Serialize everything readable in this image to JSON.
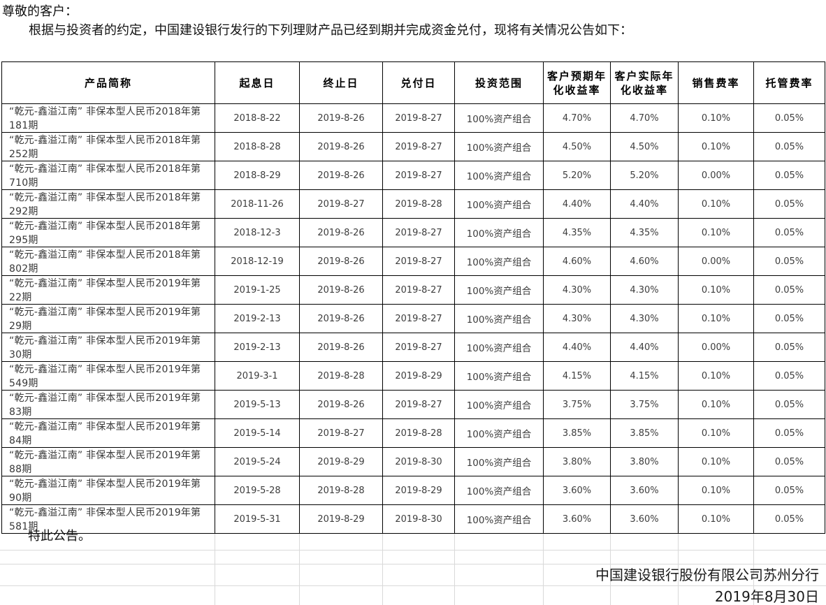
{
  "page": {
    "salutation": "尊敬的客户：",
    "intro": "根据与投资者的约定，中国建设银行发行的下列理财产品已经到期并完成资金兑付，现将有关情况公告如下：",
    "closing": "特此公告。",
    "signature": {
      "issuer": "中国建设银行股份有限公司苏州分行",
      "date": "2019年8月30日"
    }
  },
  "colors": {
    "table_border": "#000000",
    "faint_grid": "#d9d9d9",
    "text": "#111111",
    "cell_text": "#3d3d3d",
    "background": "#ffffff"
  },
  "table": {
    "headers": [
      "产品简称",
      "起息日",
      "终止日",
      "兑付日",
      "投资范围",
      "客户预期年化收益率",
      "客户实际年化收益率",
      "销售费率",
      "托管费率"
    ],
    "rows": [
      [
        "“乾元-鑫溢江南” 非保本型人民币2018年第181期",
        "2018-8-22",
        "2019-8-26",
        "2019-8-27",
        "100%资产组合",
        "4.70%",
        "4.70%",
        "0.10%",
        "0.05%"
      ],
      [
        "“乾元-鑫溢江南” 非保本型人民币2018年第252期",
        "2018-8-28",
        "2019-8-26",
        "2019-8-27",
        "100%资产组合",
        "4.50%",
        "4.50%",
        "0.10%",
        "0.05%"
      ],
      [
        "“乾元-鑫溢江南” 非保本型人民币2018年第710期",
        "2018-8-29",
        "2019-8-26",
        "2019-8-27",
        "100%资产组合",
        "5.20%",
        "5.20%",
        "0.00%",
        "0.05%"
      ],
      [
        "“乾元-鑫溢江南” 非保本型人民币2018年第292期",
        "2018-11-26",
        "2019-8-27",
        "2019-8-28",
        "100%资产组合",
        "4.40%",
        "4.40%",
        "0.10%",
        "0.05%"
      ],
      [
        "“乾元-鑫溢江南” 非保本型人民币2018年第295期",
        "2018-12-3",
        "2019-8-26",
        "2019-8-27",
        "100%资产组合",
        "4.35%",
        "4.35%",
        "0.10%",
        "0.05%"
      ],
      [
        "“乾元-鑫溢江南” 非保本型人民币2018年第802期",
        "2018-12-19",
        "2019-8-26",
        "2019-8-27",
        "100%资产组合",
        "4.60%",
        "4.60%",
        "0.00%",
        "0.05%"
      ],
      [
        "“乾元-鑫溢江南” 非保本型人民币2019年第22期",
        "2019-1-25",
        "2019-8-26",
        "2019-8-27",
        "100%资产组合",
        "4.30%",
        "4.30%",
        "0.10%",
        "0.05%"
      ],
      [
        "“乾元-鑫溢江南” 非保本型人民币2019年第29期",
        "2019-2-13",
        "2019-8-26",
        "2019-8-27",
        "100%资产组合",
        "4.30%",
        "4.30%",
        "0.10%",
        "0.05%"
      ],
      [
        "“乾元-鑫溢江南” 非保本型人民币2019年第30期",
        "2019-2-13",
        "2019-8-26",
        "2019-8-27",
        "100%资产组合",
        "4.40%",
        "4.40%",
        "0.00%",
        "0.05%"
      ],
      [
        "“乾元-鑫溢江南” 非保本型人民币2019年第549期",
        "2019-3-1",
        "2019-8-28",
        "2019-8-29",
        "100%资产组合",
        "4.15%",
        "4.15%",
        "0.10%",
        "0.05%"
      ],
      [
        "“乾元-鑫溢江南” 非保本型人民币2019年第83期",
        "2019-5-13",
        "2019-8-26",
        "2019-8-27",
        "100%资产组合",
        "3.75%",
        "3.75%",
        "0.10%",
        "0.05%"
      ],
      [
        "“乾元-鑫溢江南” 非保本型人民币2019年第84期",
        "2019-5-14",
        "2019-8-27",
        "2019-8-28",
        "100%资产组合",
        "3.85%",
        "3.85%",
        "0.10%",
        "0.05%"
      ],
      [
        "“乾元-鑫溢江南” 非保本型人民币2019年第88期",
        "2019-5-24",
        "2019-8-29",
        "2019-8-30",
        "100%资产组合",
        "3.80%",
        "3.80%",
        "0.10%",
        "0.05%"
      ],
      [
        "“乾元-鑫溢江南” 非保本型人民币2019年第90期",
        "2019-5-28",
        "2019-8-28",
        "2019-8-29",
        "100%资产组合",
        "3.60%",
        "3.60%",
        "0.10%",
        "0.05%"
      ],
      [
        "“乾元-鑫溢江南” 非保本型人民币2019年第581期",
        "2019-5-31",
        "2019-8-29",
        "2019-8-30",
        "100%资产组合",
        "3.60%",
        "3.60%",
        "0.10%",
        "0.05%"
      ]
    ]
  }
}
